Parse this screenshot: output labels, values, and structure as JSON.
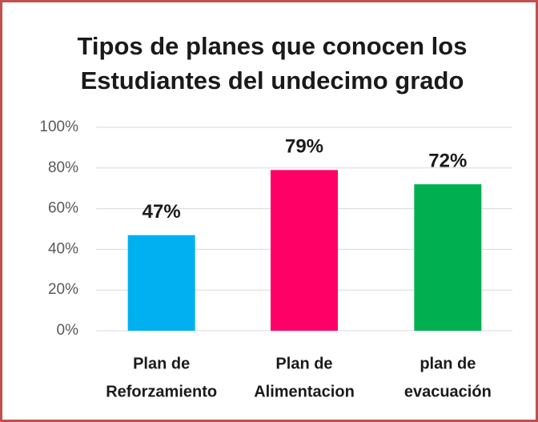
{
  "chart_data": {
    "type": "bar",
    "title": [
      "Tipos de planes que conocen los",
      "Estudiantes del undecimo  grado"
    ],
    "categories": [
      [
        "Plan de",
        "Reforzamiento"
      ],
      [
        "Plan de",
        "Alimentacion"
      ],
      [
        "plan de",
        "evacuación"
      ]
    ],
    "values": [
      47,
      79,
      72
    ],
    "value_labels": [
      "47%",
      "79%",
      "72%"
    ],
    "colors": [
      "#00b0f0",
      "#ff0066",
      "#00b050"
    ],
    "ylim": [
      0,
      100
    ],
    "yticks": [
      {
        "value": 0,
        "label": "0%"
      },
      {
        "value": 20,
        "label": "20%"
      },
      {
        "value": 40,
        "label": "40%"
      },
      {
        "value": 60,
        "label": "60%"
      },
      {
        "value": 80,
        "label": "80%"
      },
      {
        "value": 100,
        "label": "100%"
      }
    ],
    "grid": true
  }
}
